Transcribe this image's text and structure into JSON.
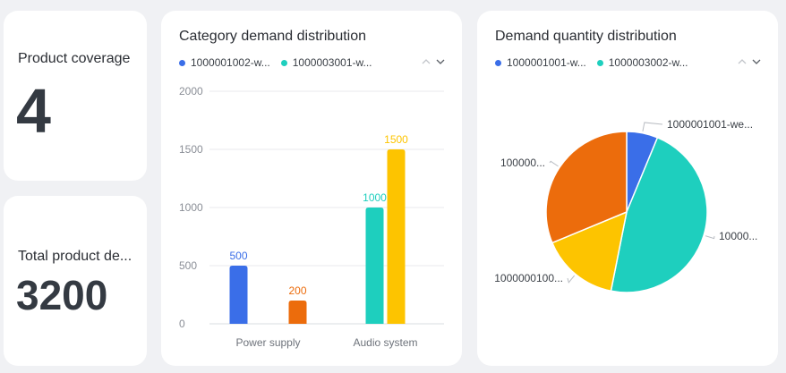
{
  "kpi_product_coverage": {
    "label": "Product coverage",
    "value": "4"
  },
  "kpi_total_product_demand": {
    "label": "Total product de...",
    "value": "3200"
  },
  "bar_card": {
    "title": "Category demand distribution",
    "legend": [
      {
        "label": "1000001002-w...",
        "color": "#3a6ee8"
      },
      {
        "label": "1000003001-w...",
        "color": "#1ecfbe"
      }
    ],
    "nav_up_icon": "chevron-up-icon",
    "nav_down_icon": "chevron-down-icon"
  },
  "pie_card": {
    "title": "Demand quantity distribution",
    "legend": [
      {
        "label": "1000001001-w...",
        "color": "#3a6ee8"
      },
      {
        "label": "1000003002-w...",
        "color": "#1ecfbe"
      }
    ],
    "nav_up_icon": "chevron-up-icon",
    "nav_down_icon": "chevron-down-icon"
  },
  "chart_data": [
    {
      "type": "bar",
      "title": "Category demand distribution",
      "categories": [
        "Power supply",
        "Audio system"
      ],
      "ylim": [
        0,
        2000
      ],
      "yticks": [
        "0",
        "500",
        "1000",
        "1500",
        "2000"
      ],
      "grid": true,
      "legend_position": "top-left",
      "bars": [
        {
          "category": 0,
          "value": 500,
          "label": "500",
          "color": "#3a6ee8"
        },
        {
          "category": 0,
          "value": 200,
          "label": "200",
          "color": "#ec6c0c"
        },
        {
          "category": 1,
          "value": 1000,
          "label": "1000",
          "color": "#1ecfbe"
        },
        {
          "category": 1,
          "value": 1500,
          "label": "1500",
          "color": "#fdc400"
        }
      ]
    },
    {
      "type": "pie",
      "title": "Demand quantity distribution",
      "legend_position": "top-left",
      "slices": [
        {
          "label": "1000001001-we...",
          "value": 200,
          "color": "#3a6ee8"
        },
        {
          "label": "10000...",
          "value": 1500,
          "color": "#1ecfbe"
        },
        {
          "label": "1000000100...",
          "value": 500,
          "color": "#fdc400"
        },
        {
          "label": "100000...",
          "value": 1000,
          "color": "#ec6c0c"
        }
      ]
    }
  ]
}
